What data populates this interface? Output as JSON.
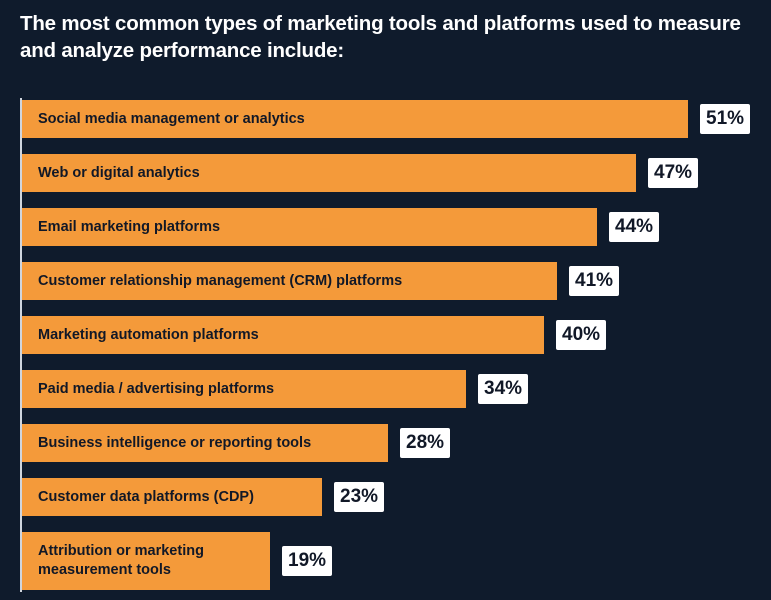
{
  "header": {
    "title": "The most common types of marketing tools and platforms used to measure and analyze performance include:"
  },
  "colors": {
    "background": "#0f1b2c",
    "bar": "#f49a3a",
    "label_box": "#ffffff",
    "text_dark": "#111827"
  },
  "chart_data": {
    "type": "bar",
    "orientation": "horizontal",
    "categories": [
      "Social media management or analytics",
      "Web or digital analytics",
      "Email marketing platforms",
      "Customer relationship management (CRM) platforms",
      "Marketing automation platforms",
      "Paid media / advertising platforms",
      "Business intelligence or reporting tools",
      "Customer data platforms (CDP)",
      "Attribution or marketing measurement tools"
    ],
    "values": [
      51,
      47,
      44,
      41,
      40,
      34,
      28,
      23,
      19
    ],
    "data_labels": [
      "51%",
      "47%",
      "44%",
      "41%",
      "40%",
      "34%",
      "28%",
      "23%",
      "19%"
    ],
    "unit": "%",
    "xlim": [
      0,
      51
    ],
    "grid": false,
    "legend": "none"
  }
}
